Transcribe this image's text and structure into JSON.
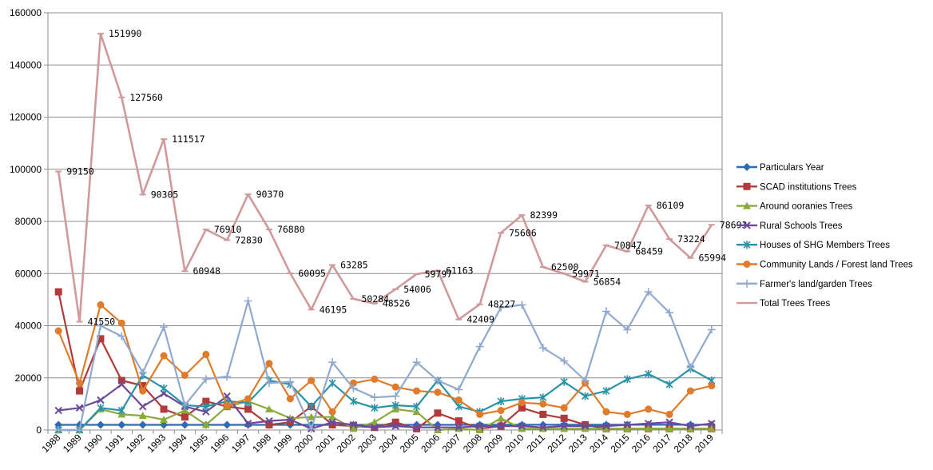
{
  "chart_data": {
    "type": "line",
    "title": "",
    "xlabel": "",
    "ylabel": "",
    "ylim": [
      0,
      160000
    ],
    "yticks": [
      0,
      20000,
      40000,
      60000,
      80000,
      100000,
      120000,
      140000,
      160000
    ],
    "grid": true,
    "legend": "right",
    "categories": [
      "1988",
      "1989",
      "1990",
      "1991",
      "1992",
      "1993",
      "1994",
      "1995",
      "1996",
      "1997",
      "1998",
      "1999",
      "2000",
      "2001",
      "2002",
      "2003",
      "2004",
      "2005",
      "2006",
      "2007",
      "2008",
      "2009",
      "2010",
      "2011",
      "2012",
      "2013",
      "2014",
      "2015",
      "2016",
      "2017",
      "2018",
      "2019"
    ],
    "series": [
      {
        "name": "Particulars  Year",
        "color": "#2e6bb0",
        "marker": "diamond",
        "values": [
          1988,
          1989,
          1990,
          1991,
          1992,
          1993,
          1994,
          1995,
          1996,
          1997,
          1998,
          1999,
          2000,
          2001,
          2002,
          2003,
          2004,
          2005,
          2006,
          2007,
          2008,
          2009,
          2010,
          2011,
          2012,
          2013,
          2014,
          2015,
          2016,
          2017,
          2018,
          2019
        ]
      },
      {
        "name": "SCAD institutions  Trees",
        "color": "#b23a3a",
        "marker": "square",
        "values": [
          53000,
          15000,
          35000,
          19000,
          17000,
          8000,
          5000,
          11000,
          9000,
          8000,
          2000,
          3000,
          9000,
          2000,
          1500,
          1000,
          3000,
          500,
          6500,
          3500,
          500,
          1500,
          8500,
          6000,
          4500,
          2000,
          500,
          500,
          500,
          500,
          500,
          500
        ]
      },
      {
        "name": "Around ooranies  Trees",
        "color": "#8aaa3c",
        "marker": "triangle",
        "values": [
          0,
          0,
          8000,
          6000,
          5500,
          4000,
          7500,
          2000,
          9000,
          11000,
          8000,
          4500,
          5000,
          5000,
          500,
          3000,
          8000,
          7000,
          0,
          500,
          0,
          4500,
          500,
          500,
          500,
          500,
          500,
          500,
          500,
          500,
          500,
          500
        ]
      },
      {
        "name": "Rural Schools Trees",
        "color": "#6a4a9a",
        "marker": "x",
        "values": [
          7500,
          8500,
          11500,
          17500,
          9000,
          14000,
          9000,
          7000,
          13000,
          2500,
          3500,
          4000,
          500,
          3000,
          2000,
          1000,
          1500,
          1000,
          1000,
          1000,
          1500,
          1500,
          1500,
          1000,
          1500,
          1500,
          1500,
          2000,
          2500,
          3000,
          1500,
          2500
        ]
      },
      {
        "name": "Houses of SHG Members Trees",
        "color": "#2a93a8",
        "marker": "star",
        "values": [
          0,
          0,
          8500,
          7500,
          21000,
          16000,
          9500,
          9000,
          11000,
          10500,
          19000,
          17500,
          9000,
          18000,
          11000,
          8500,
          9500,
          9000,
          19000,
          9000,
          7000,
          11000,
          12000,
          12500,
          18500,
          13000,
          15000,
          19500,
          21500,
          17500,
          23500,
          19000
        ]
      },
      {
        "name": "Community Lands / Forest land Trees",
        "color": "#e07b2a",
        "marker": "circle",
        "values": [
          38000,
          18000,
          48000,
          41000,
          15000,
          28500,
          21000,
          29000,
          9500,
          12000,
          25500,
          12000,
          19000,
          7000,
          18000,
          19500,
          16500,
          15000,
          14500,
          11500,
          6000,
          7500,
          10500,
          10000,
          8500,
          18000,
          7000,
          6000,
          8000,
          6000,
          15000,
          17000
        ]
      },
      {
        "name": "Farmer's land/garden Trees",
        "color": "#92a9cf",
        "marker": "plus",
        "values": [
          0,
          0,
          40000,
          36000,
          22000,
          39500,
          9500,
          19500,
          20500,
          49500,
          18000,
          18500,
          500,
          26000,
          16000,
          12500,
          13000,
          26000,
          19000,
          15500,
          32000,
          47000,
          48000,
          31500,
          26500,
          19000,
          45500,
          38500,
          53000,
          45000,
          24000,
          38500
        ]
      },
      {
        "name": "Total Trees Trees",
        "color": "#d09a9a",
        "marker": "dash",
        "values": [
          99150,
          41550,
          151990,
          127560,
          90305,
          111517,
          60948,
          76910,
          72830,
          90370,
          76880,
          60095,
          46195,
          63285,
          50284,
          48526,
          54006,
          59797,
          61163,
          42409,
          48227,
          75606,
          82399,
          62500,
          59971,
          56854,
          70847,
          68459,
          86109,
          73224,
          65994,
          78693
        ]
      }
    ],
    "data_labels": [
      "99150",
      "41550",
      "151990",
      "127560",
      "90305",
      "111517",
      "60948",
      "76910",
      "72830",
      "90370",
      "76880",
      "60095",
      "46195",
      "63285",
      "50284",
      "48526",
      "54006",
      "59797",
      "61163",
      "42409",
      "48227",
      "75606",
      "82399",
      "62500",
      "59971",
      "56854",
      "70847",
      "68459",
      "86109",
      "73224",
      "65994",
      "78693"
    ]
  }
}
